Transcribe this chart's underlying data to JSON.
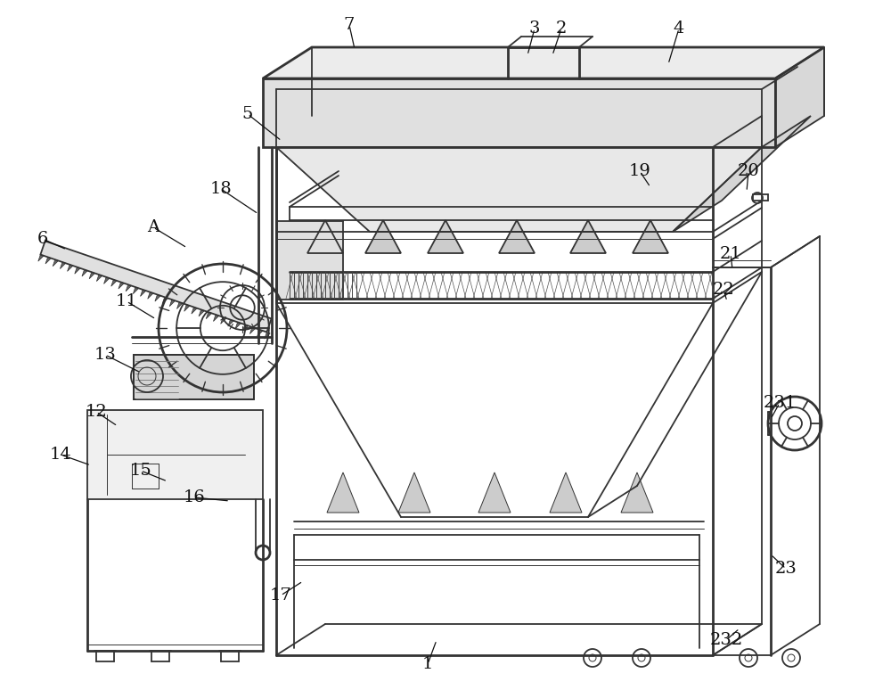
{
  "figsize": [
    10.0,
    7.83
  ],
  "dpi": 100,
  "bg_color": "#ffffff",
  "lc": "#333333",
  "lw": 1.3,
  "lw_thick": 2.0,
  "lw_thin": 0.7,
  "annotations": [
    [
      "1",
      480,
      745,
      490,
      718
    ],
    [
      "2",
      630,
      32,
      620,
      62
    ],
    [
      "3",
      600,
      32,
      592,
      62
    ],
    [
      "4",
      762,
      32,
      750,
      72
    ],
    [
      "5",
      278,
      128,
      316,
      158
    ],
    [
      "6",
      48,
      268,
      75,
      280
    ],
    [
      "7",
      392,
      28,
      398,
      55
    ],
    [
      "11",
      142,
      338,
      175,
      358
    ],
    [
      "12",
      108,
      462,
      132,
      478
    ],
    [
      "13",
      118,
      398,
      158,
      418
    ],
    [
      "14",
      68,
      510,
      102,
      522
    ],
    [
      "15",
      158,
      528,
      188,
      540
    ],
    [
      "16",
      218,
      558,
      258,
      562
    ],
    [
      "17",
      315,
      668,
      340,
      652
    ],
    [
      "18",
      248,
      212,
      290,
      240
    ],
    [
      "19",
      718,
      192,
      730,
      210
    ],
    [
      "20",
      840,
      192,
      838,
      215
    ],
    [
      "21",
      820,
      285,
      822,
      302
    ],
    [
      "22",
      812,
      325,
      816,
      338
    ],
    [
      "23",
      882,
      638,
      865,
      622
    ],
    [
      "231",
      875,
      452,
      865,
      470
    ],
    [
      "232",
      815,
      718,
      830,
      705
    ],
    [
      "A",
      172,
      255,
      210,
      278
    ]
  ]
}
